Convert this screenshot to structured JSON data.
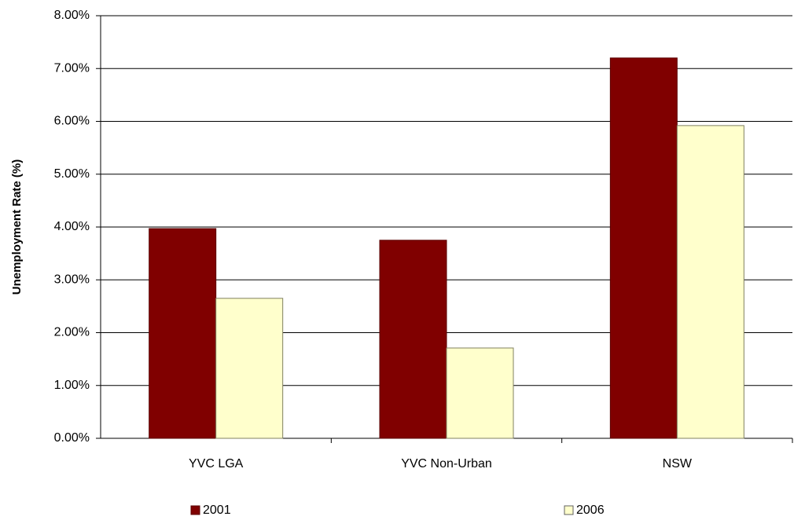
{
  "chart_data": {
    "type": "bar",
    "y_label": "Unemployment Rate (%)",
    "categories": [
      "YVC LGA",
      "YVC Non-Urban",
      "NSW"
    ],
    "series": [
      {
        "name": "2001",
        "color": "#800000",
        "values": [
          3.97,
          3.75,
          7.2
        ]
      },
      {
        "name": "2006",
        "color": "#ffffcc",
        "values": [
          2.65,
          1.71,
          5.92
        ]
      }
    ],
    "ylim": [
      0,
      8
    ],
    "yticks": [
      {
        "value": 0,
        "label": "0.00%"
      },
      {
        "value": 1,
        "label": "1.00%"
      },
      {
        "value": 2,
        "label": "2.00%"
      },
      {
        "value": 3,
        "label": "3.00%"
      },
      {
        "value": 4,
        "label": "4.00%"
      },
      {
        "value": 5,
        "label": "5.00%"
      },
      {
        "value": 6,
        "label": "6.00%"
      },
      {
        "value": 7,
        "label": "7.00%"
      },
      {
        "value": 8,
        "label": "8.00%"
      }
    ],
    "grid": true,
    "legend": "bottom"
  }
}
